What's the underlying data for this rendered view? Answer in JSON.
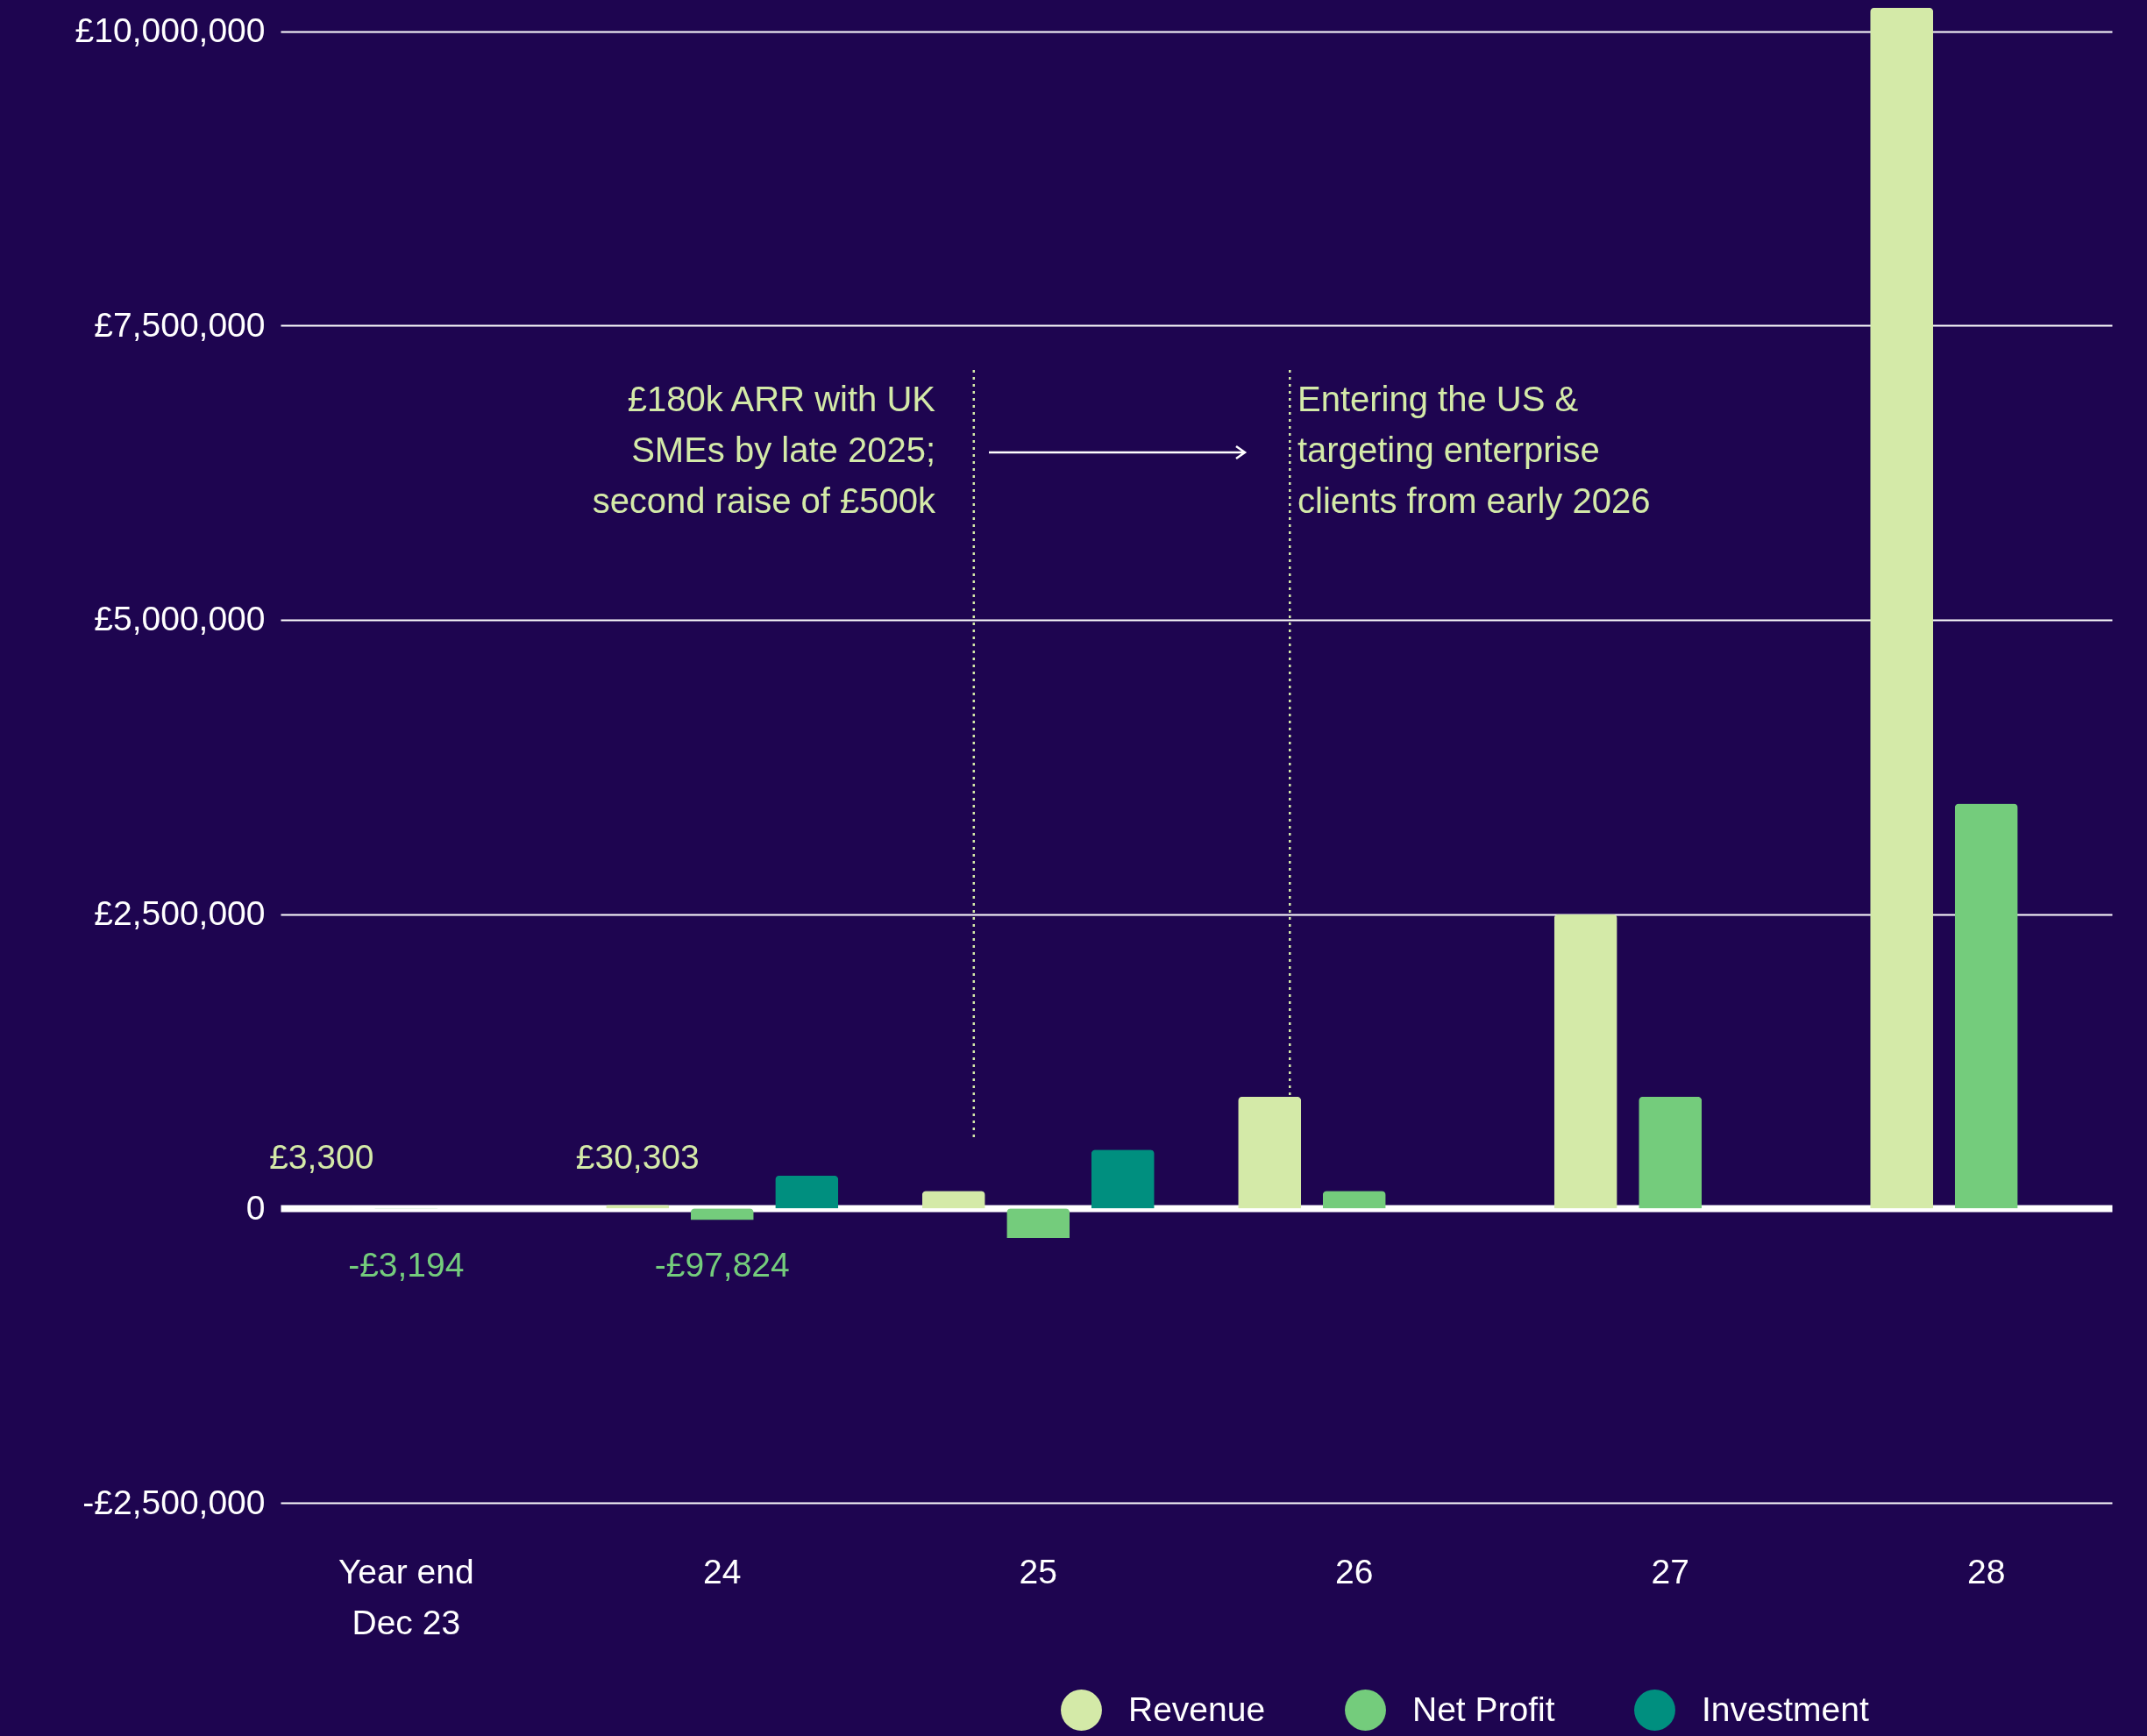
{
  "chart_data": {
    "type": "bar",
    "categories": [
      "Year end Dec 23",
      "24",
      "25",
      "26",
      "27",
      "28"
    ],
    "series": [
      {
        "name": "Revenue",
        "color": "#d4eaa8",
        "values": [
          3300,
          30303,
          150000,
          950000,
          2500000,
          10200000
        ],
        "value_labels": [
          "£3,300",
          "£30,303",
          null,
          null,
          null,
          null
        ]
      },
      {
        "name": "Net Profit",
        "color": "#74cc7c",
        "values": [
          -3194,
          -97824,
          -250000,
          150000,
          950000,
          3440000
        ],
        "value_labels": [
          "-£3,194",
          "-£97,824",
          null,
          null,
          null,
          null
        ]
      },
      {
        "name": "Investment",
        "color": "#008f7f",
        "values": [
          null,
          280000,
          500000,
          null,
          null,
          null
        ]
      }
    ],
    "ylim": [
      -2500000,
      10250000
    ],
    "yticks": [
      {
        "value": -2500000,
        "label": "-£2,500,000"
      },
      0,
      {
        "value": 2500000,
        "label": "£2,500,000"
      },
      {
        "value": 5000000,
        "label": "£5,000,000"
      },
      {
        "value": 7500000,
        "label": "£7,500,000"
      },
      {
        "value": 10000000,
        "label": "£10,000,000"
      }
    ],
    "grid": "y",
    "legend": "bottom right",
    "annotations": [
      "£180k ARR with UK\nSMEs by late 2025;\nsecond raise of £500k",
      "Entering the US &\ntargeting enterprise\nclients from early 2026"
    ],
    "ref_lines": [
      {
        "axis": "x",
        "value": "25",
        "line_style": "dotted",
        "color": "#d4eaa8"
      },
      {
        "axis": "x",
        "value": "26",
        "line_style": "dotted",
        "color": "#d4eaa8"
      }
    ]
  }
}
